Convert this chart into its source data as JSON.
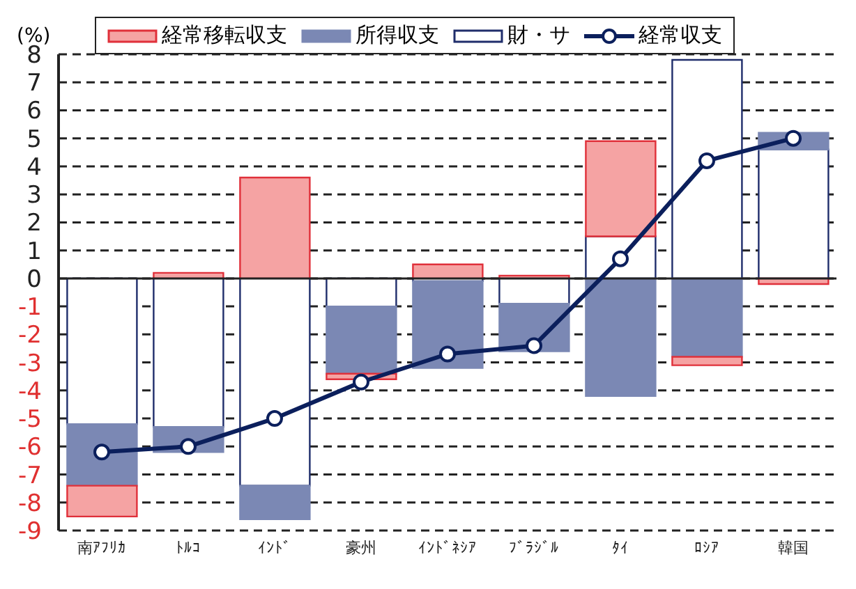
{
  "chart_data": {
    "type": "bar",
    "stacked": true,
    "ylabel": "(%)",
    "categories": [
      "南ｱﾌﾘｶ",
      "ﾄﾙｺ",
      "ｲﾝﾄﾞ",
      "豪州",
      "ｲﾝﾄﾞﾈｼｱ",
      "ﾌﾞﾗｼﾞﾙ",
      "ﾀｲ",
      "ﾛｼｱ",
      "韓国"
    ],
    "series": [
      {
        "name": "財・サ",
        "color": "#ffffff",
        "values": [
          -5.2,
          -5.3,
          -7.4,
          -1.0,
          -0.1,
          -0.9,
          1.5,
          7.8,
          4.6
        ]
      },
      {
        "name": "所得収支",
        "color": "#7b88b4",
        "values": [
          -2.2,
          -0.9,
          -1.2,
          -2.4,
          -3.1,
          -1.7,
          -4.2,
          -2.8,
          0.6
        ]
      },
      {
        "name": "経常移転収支",
        "color": "#f5a3a3",
        "values": [
          -1.1,
          0.2,
          3.6,
          -0.2,
          0.5,
          0.1,
          3.4,
          -0.3,
          -0.2
        ]
      },
      {
        "name": "経常収支",
        "type": "line",
        "color": "#0b1f5c",
        "values": [
          -6.2,
          -6.0,
          -5.0,
          -3.7,
          -2.7,
          -2.4,
          0.7,
          4.2,
          5.0
        ]
      }
    ],
    "ylim": [
      -9,
      8
    ],
    "yticks": [
      -9,
      -8,
      -7,
      -6,
      -5,
      -4,
      -3,
      -2,
      -1,
      0,
      1,
      2,
      3,
      4,
      5,
      6,
      7,
      8
    ],
    "grid": "y",
    "legend": "top",
    "marker": "circle",
    "line_style": "solid",
    "ref_lines": [
      {
        "axis": "y",
        "value": 0
      }
    ]
  }
}
